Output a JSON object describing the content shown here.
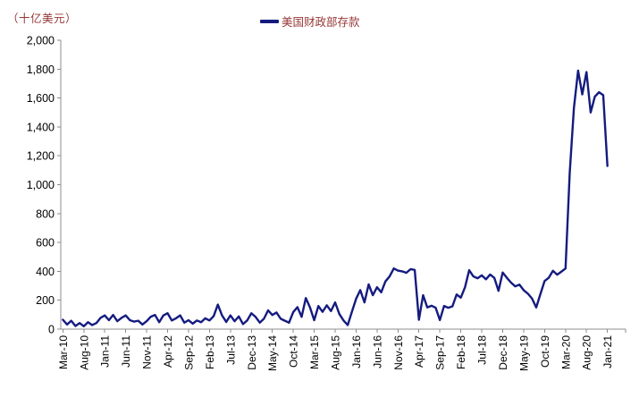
{
  "unit_label": "（十亿美元）",
  "legend": {
    "series_label": "美国财政部存款"
  },
  "colors": {
    "line": "#141b7f",
    "accent_text": "#953735",
    "axis": "#8c8c8c",
    "tick_text": "#000000"
  },
  "chart_data": {
    "type": "line",
    "title": "美国财政部存款",
    "unit": "十亿美元 (billion USD)",
    "frequency": "monthly",
    "start": "Mar-10",
    "end": "Jan-21",
    "legend_position": "top-center",
    "grid": false,
    "ylim": [
      0,
      2000
    ],
    "ytick_step": 200,
    "y_tick_labels": [
      "0",
      "200",
      "400",
      "600",
      "800",
      "1,000",
      "1,200",
      "1,400",
      "1,600",
      "1,800",
      "2,000"
    ],
    "x_tick_labels": [
      "Mar-10",
      "Aug-10",
      "Jan-11",
      "Jun-11",
      "Nov-11",
      "Apr-12",
      "Sep-12",
      "Feb-13",
      "Jul-13",
      "Dec-13",
      "May-14",
      "Oct-14",
      "Mar-15",
      "Aug-15",
      "Jan-16",
      "Jun-16",
      "Nov-16",
      "Apr-17",
      "Sep-17",
      "Feb-18",
      "Jul-18",
      "Dec-18",
      "May-19",
      "Oct-19",
      "Mar-20",
      "Aug-20",
      "Jan-21"
    ],
    "x_tick_every_n_months": 5,
    "values": [
      65,
      32,
      58,
      22,
      42,
      20,
      48,
      28,
      42,
      78,
      95,
      62,
      98,
      55,
      78,
      95,
      62,
      52,
      58,
      32,
      55,
      86,
      98,
      48,
      95,
      110,
      60,
      75,
      95,
      45,
      62,
      38,
      60,
      48,
      75,
      60,
      90,
      170,
      95,
      50,
      95,
      55,
      88,
      35,
      60,
      110,
      85,
      45,
      72,
      130,
      98,
      115,
      72,
      58,
      45,
      118,
      152,
      85,
      215,
      150,
      62,
      160,
      120,
      165,
      125,
      185,
      105,
      60,
      28,
      120,
      210,
      270,
      185,
      310,
      235,
      290,
      255,
      330,
      365,
      420,
      405,
      400,
      390,
      415,
      410,
      65,
      235,
      150,
      162,
      148,
      63,
      160,
      148,
      158,
      240,
      218,
      290,
      408,
      365,
      352,
      372,
      345,
      378,
      355,
      265,
      392,
      355,
      322,
      296,
      308,
      270,
      246,
      212,
      150,
      242,
      333,
      356,
      404,
      377,
      398,
      420,
      1080,
      1530,
      1790,
      1625,
      1780,
      1500,
      1610,
      1640,
      1620,
      1130
    ]
  }
}
